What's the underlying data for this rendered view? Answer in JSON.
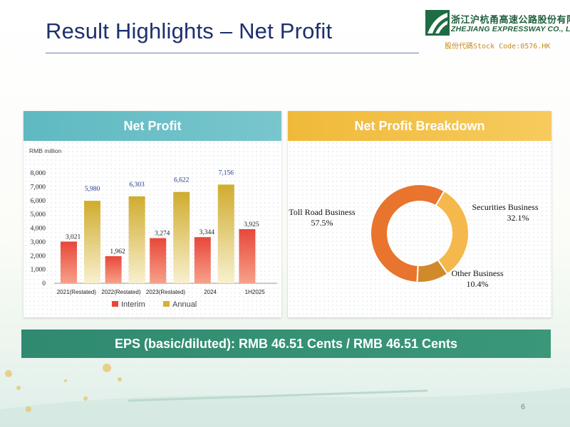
{
  "slide": {
    "title": "Result Highlights – Net Profit",
    "page_number": "6",
    "eps_text": "EPS (basic/diluted): RMB 46.51 Cents / RMB 46.51 Cents"
  },
  "logo": {
    "chinese_name": "浙江沪杭甬高速公路股份有限公司",
    "english_name": "ZHEJIANG EXPRESSWAY CO., LTD.",
    "stock_code": "股份代碼Stock Code:0576.HK"
  },
  "panels": {
    "left_title": "Net Profit",
    "right_title": "Net Profit Breakdown",
    "unit": "RMB million"
  },
  "colors": {
    "interim": "#e8473a",
    "annual": "#d4b23a",
    "toll_road": "#e8742e",
    "securities": "#f5b84c",
    "other": "#d18a2b"
  },
  "chart_data": [
    {
      "type": "bar",
      "title": "Net Profit",
      "ylabel": "RMB million",
      "ylim": [
        0,
        8000
      ],
      "yticks": [
        "0",
        "1,000",
        "2,000",
        "3,000",
        "4,000",
        "5,000",
        "6,000",
        "7,000",
        "8,000"
      ],
      "categories": [
        "2021(Restated)",
        "2022(Restated)",
        "2023(Restated)",
        "2024",
        "1H2025"
      ],
      "series": [
        {
          "name": "Interim",
          "values": [
            3021,
            1962,
            3274,
            3344,
            3925
          ],
          "labels": [
            "3,021",
            "1,962",
            "3,274",
            "3,344",
            "3,925"
          ]
        },
        {
          "name": "Annual",
          "values": [
            5980,
            6303,
            6622,
            7156,
            null
          ],
          "labels": [
            "5,980",
            "6,303",
            "6,622",
            "7,156",
            ""
          ]
        }
      ],
      "legend": "bottom",
      "grid": false
    },
    {
      "type": "pie",
      "title": "Net Profit Breakdown",
      "donut": true,
      "slices": [
        {
          "label": "Toll Road Business",
          "pct_text": "57.5%",
          "value": 57.5
        },
        {
          "label": "Securities Business",
          "pct_text": "32.1%",
          "value": 32.1
        },
        {
          "label": "Other Business",
          "pct_text": "10.4%",
          "value": 10.4
        }
      ]
    }
  ]
}
